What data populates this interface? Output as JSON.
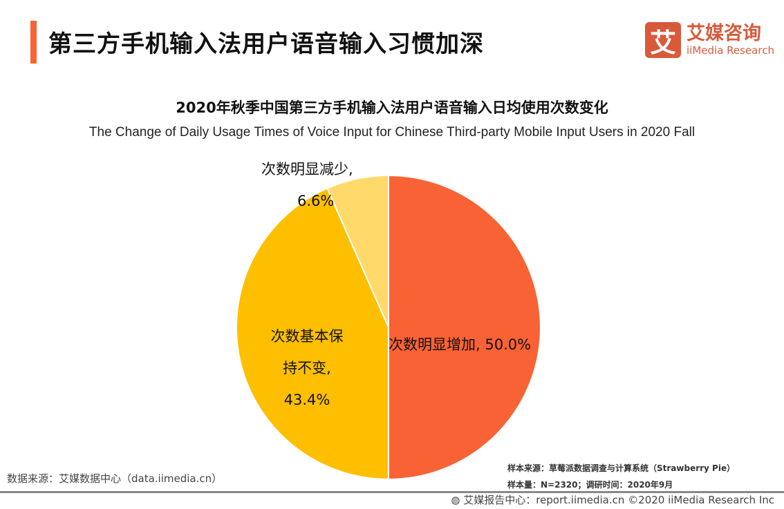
{
  "header": {
    "title": "第三方手机输入法用户语音输入习惯加深"
  },
  "logo": {
    "mark": "艾",
    "cn": "艾媒咨询",
    "en": "iiMedia Research"
  },
  "chart_data": {
    "type": "pie",
    "title": "2020年秋季中国第三方手机输入法用户语音输入日均使用次数变化",
    "subtitle": "The Change of Daily Usage Times of Voice Input for Chinese Third-party Mobile Input Users in 2020 Fall",
    "slices": [
      {
        "label": "次数明显增加",
        "value": 50.0,
        "color": "#F96234",
        "text": "次数明显增加, 50.0%"
      },
      {
        "label": "次数基本保持不变",
        "value": 43.4,
        "color": "#FDBF00",
        "lines": [
          "次数基本保",
          "持不变,",
          "43.4%"
        ]
      },
      {
        "label": "次数明显减少",
        "value": 6.6,
        "color": "#FFD96A",
        "lines": [
          "次数明显减少,",
          "6.6%"
        ]
      }
    ]
  },
  "footer": {
    "source": "数据来源：艾媒数据中心（data.iimedia.cn）",
    "sample_source": "样本来源：草莓派数据调查与计算系统（Strawberry Pie）",
    "sample_size": "样本量：N=2320；调研时间：2020年9月",
    "report": "艾媒报告中心：report.iimedia.cn   ©2020  iiMedia Research  Inc"
  }
}
